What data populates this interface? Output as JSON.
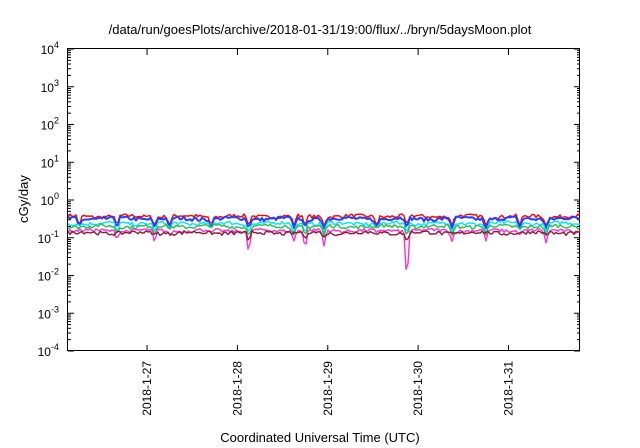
{
  "chart_data": {
    "type": "line",
    "title": "/data/run/goesPlots/archive/2018-01-31/19:00/flux/../bryn/5daysMoon.plot",
    "xlabel": "Coordinated Universal Time (UTC)",
    "ylabel": "cGy/day",
    "yscale": "log",
    "ylim": [
      0.0001,
      10000
    ],
    "yticks": [
      {
        "mant": "10",
        "exp": "-4",
        "value": 0.0001
      },
      {
        "mant": "10",
        "exp": "-3",
        "value": 0.001
      },
      {
        "mant": "10",
        "exp": "-2",
        "value": 0.01
      },
      {
        "mant": "10",
        "exp": "-1",
        "value": 0.1
      },
      {
        "mant": "10",
        "exp": "0",
        "value": 1
      },
      {
        "mant": "10",
        "exp": "1",
        "value": 10
      },
      {
        "mant": "10",
        "exp": "2",
        "value": 100
      },
      {
        "mant": "10",
        "exp": "3",
        "value": 1000
      },
      {
        "mant": "10",
        "exp": "4",
        "value": 10000
      }
    ],
    "xlim": [
      "2018-01-26T03:00",
      "2018-01-31T19:00"
    ],
    "xticks": [
      "2018-1-27",
      "2018-1-28",
      "2018-1-29",
      "2018-1-30",
      "2018-1-31"
    ],
    "xtick_dates": [
      "2018-01-27T00:00",
      "2018-01-28T00:00",
      "2018-01-29T00:00",
      "2018-01-30T00:00",
      "2018-01-31T00:00"
    ],
    "grid": false,
    "series": [
      {
        "color": "#ff0000",
        "level": 0.37
      },
      {
        "color": "#2a3cff",
        "level": 0.32
      },
      {
        "color": "#00e5ff",
        "level": 0.24
      },
      {
        "color": "#27c04a",
        "level": 0.2
      },
      {
        "color": "#ff33cc",
        "level": 0.155
      },
      {
        "color": "#8b1a3a",
        "level": 0.135
      }
    ],
    "dips": [
      {
        "x": "2018-01-26T06:00",
        "y": 0.17
      },
      {
        "x": "2018-01-26T16:00",
        "y": 0.09
      },
      {
        "x": "2018-01-27T02:00",
        "y": 0.07
      },
      {
        "x": "2018-01-27T06:00",
        "y": 0.12
      },
      {
        "x": "2018-01-27T17:00",
        "y": 0.13
      },
      {
        "x": "2018-01-28T03:00",
        "y": 0.035
      },
      {
        "x": "2018-01-28T15:00",
        "y": 0.08
      },
      {
        "x": "2018-01-28T18:00",
        "y": 0.05
      },
      {
        "x": "2018-01-28T23:00",
        "y": 0.06
      },
      {
        "x": "2018-01-29T13:00",
        "y": 0.13
      },
      {
        "x": "2018-01-29T21:00",
        "y": 0.006
      },
      {
        "x": "2018-01-30T09:00",
        "y": 0.08
      },
      {
        "x": "2018-01-30T18:00",
        "y": 0.08
      },
      {
        "x": "2018-01-31T03:00",
        "y": 0.12
      },
      {
        "x": "2018-01-31T10:00",
        "y": 0.07
      }
    ]
  }
}
